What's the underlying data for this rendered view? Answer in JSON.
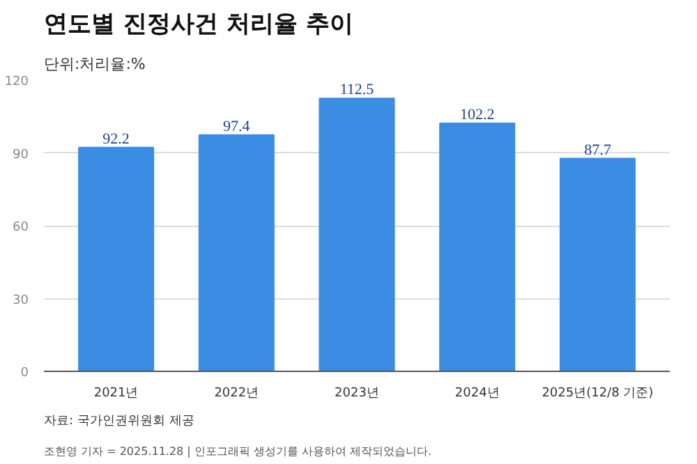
{
  "chart_data": {
    "type": "bar",
    "title": "연도별 진정사건 처리율 추이",
    "subtitle": "단위:처리율:%",
    "categories": [
      "2021년",
      "2022년",
      "2023년",
      "2024년",
      "2025년(12/8 기준)"
    ],
    "values": [
      92.2,
      97.4,
      112.5,
      102.2,
      87.7
    ],
    "color": "#3b8de3",
    "ylim": [
      0,
      120
    ],
    "yticks": [
      0,
      30,
      60,
      90,
      120
    ],
    "grid": "y",
    "data_labels": true,
    "annotations": [
      "자료: 국가인권위원회 제공",
      "조현영 기자 = 2025.11.28 | 인포그래픽 생성기를 사용하여 제작되었습니다."
    ]
  }
}
